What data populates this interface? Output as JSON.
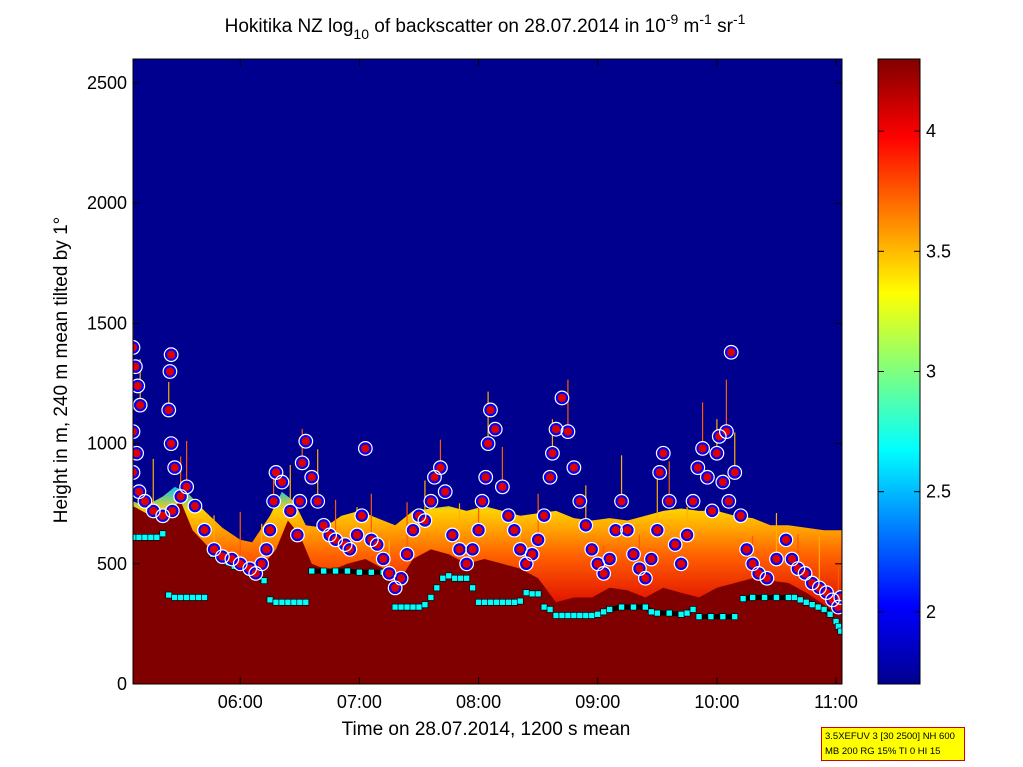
{
  "chart_data": {
    "type": "heatmap",
    "title": {
      "prefix": "Hokitika NZ log",
      "log_base": "10",
      "middle": " of backscatter on 28.07.2014 in 10",
      "exp1": "-9",
      "unit1": " m",
      "exp2": "-1",
      "unit2": " sr",
      "exp3": "-1"
    },
    "xlabel": "Time on 28.07.2014, 1200 s mean",
    "ylabel": "Height in m, 240 m mean tilted by 1°",
    "x_range_hours": [
      5.1,
      11.05
    ],
    "x_ticks": [
      {
        "value": 6,
        "label": "06:00"
      },
      {
        "value": 7,
        "label": "07:00"
      },
      {
        "value": 8,
        "label": "08:00"
      },
      {
        "value": 9,
        "label": "09:00"
      },
      {
        "value": 10,
        "label": "10:00"
      },
      {
        "value": 11,
        "label": "11:00"
      }
    ],
    "y_range_m": [
      0,
      2600
    ],
    "y_ticks": [
      {
        "value": 0,
        "label": "0"
      },
      {
        "value": 500,
        "label": "500"
      },
      {
        "value": 1000,
        "label": "1000"
      },
      {
        "value": 1500,
        "label": "1500"
      },
      {
        "value": 2000,
        "label": "2000"
      },
      {
        "value": 2500,
        "label": "2500"
      }
    ],
    "colorbar": {
      "range": [
        1.7,
        4.3
      ],
      "ticks": [
        {
          "value": 2,
          "label": "2"
        },
        {
          "value": 2.5,
          "label": "2.5"
        },
        {
          "value": 3,
          "label": "3"
        },
        {
          "value": 3.5,
          "label": "3.5"
        },
        {
          "value": 4,
          "label": "4"
        }
      ]
    },
    "backscatter_layer_top_m": [
      [
        5.1,
        760
      ],
      [
        5.2,
        740
      ],
      [
        5.35,
        780
      ],
      [
        5.45,
        820
      ],
      [
        5.55,
        800
      ],
      [
        5.7,
        720
      ],
      [
        5.85,
        650
      ],
      [
        6.0,
        600
      ],
      [
        6.1,
        590
      ],
      [
        6.25,
        700
      ],
      [
        6.35,
        800
      ],
      [
        6.45,
        760
      ],
      [
        6.55,
        660
      ],
      [
        6.7,
        650
      ],
      [
        6.85,
        700
      ],
      [
        7.0,
        720
      ],
      [
        7.15,
        690
      ],
      [
        7.3,
        660
      ],
      [
        7.45,
        720
      ],
      [
        7.6,
        730
      ],
      [
        7.75,
        740
      ],
      [
        7.9,
        720
      ],
      [
        8.05,
        740
      ],
      [
        8.2,
        720
      ],
      [
        8.35,
        700
      ],
      [
        8.5,
        710
      ],
      [
        8.65,
        720
      ],
      [
        8.8,
        690
      ],
      [
        8.95,
        680
      ],
      [
        9.1,
        690
      ],
      [
        9.25,
        680
      ],
      [
        9.4,
        700
      ],
      [
        9.55,
        720
      ],
      [
        9.7,
        730
      ],
      [
        9.85,
        720
      ],
      [
        10.0,
        720
      ],
      [
        10.15,
        700
      ],
      [
        10.3,
        690
      ],
      [
        10.45,
        660
      ],
      [
        10.6,
        660
      ],
      [
        10.75,
        650
      ],
      [
        10.9,
        640
      ],
      [
        11.05,
        640
      ]
    ],
    "saturated_layer_top_m": [
      [
        5.1,
        740
      ],
      [
        5.25,
        700
      ],
      [
        5.4,
        720
      ],
      [
        5.5,
        760
      ],
      [
        5.6,
        640
      ],
      [
        5.75,
        560
      ],
      [
        5.9,
        500
      ],
      [
        6.05,
        480
      ],
      [
        6.15,
        470
      ],
      [
        6.3,
        560
      ],
      [
        6.4,
        680
      ],
      [
        6.5,
        620
      ],
      [
        6.6,
        500
      ],
      [
        6.75,
        470
      ],
      [
        6.9,
        500
      ],
      [
        7.05,
        520
      ],
      [
        7.2,
        480
      ],
      [
        7.3,
        400
      ],
      [
        7.45,
        520
      ],
      [
        7.6,
        560
      ],
      [
        7.75,
        540
      ],
      [
        7.9,
        500
      ],
      [
        8.05,
        520
      ],
      [
        8.2,
        500
      ],
      [
        8.35,
        480
      ],
      [
        8.5,
        440
      ],
      [
        8.65,
        340
      ],
      [
        8.8,
        360
      ],
      [
        8.95,
        360
      ],
      [
        9.1,
        400
      ],
      [
        9.25,
        390
      ],
      [
        9.4,
        360
      ],
      [
        9.55,
        400
      ],
      [
        9.7,
        380
      ],
      [
        9.85,
        360
      ],
      [
        10.0,
        400
      ],
      [
        10.15,
        420
      ],
      [
        10.3,
        440
      ],
      [
        10.45,
        430
      ],
      [
        10.6,
        420
      ],
      [
        10.75,
        380
      ],
      [
        10.9,
        330
      ],
      [
        11.0,
        300
      ],
      [
        11.05,
        290
      ]
    ],
    "cloud_base_m": [
      [
        5.1,
        1400
      ],
      [
        5.12,
        1320
      ],
      [
        5.14,
        1240
      ],
      [
        5.16,
        1160
      ],
      [
        5.1,
        1050
      ],
      [
        5.13,
        960
      ],
      [
        5.1,
        880
      ],
      [
        5.15,
        800
      ],
      [
        5.2,
        760
      ],
      [
        5.27,
        720
      ],
      [
        5.35,
        700
      ],
      [
        5.43,
        720
      ],
      [
        5.5,
        780
      ],
      [
        5.45,
        900
      ],
      [
        5.42,
        1000
      ],
      [
        5.4,
        1140
      ],
      [
        5.41,
        1300
      ],
      [
        5.42,
        1370
      ],
      [
        5.55,
        820
      ],
      [
        5.62,
        740
      ],
      [
        5.7,
        640
      ],
      [
        5.78,
        560
      ],
      [
        5.85,
        530
      ],
      [
        5.93,
        520
      ],
      [
        6.0,
        500
      ],
      [
        6.08,
        480
      ],
      [
        6.13,
        460
      ],
      [
        6.18,
        500
      ],
      [
        6.22,
        560
      ],
      [
        6.25,
        640
      ],
      [
        6.28,
        760
      ],
      [
        6.3,
        880
      ],
      [
        6.35,
        840
      ],
      [
        6.42,
        720
      ],
      [
        6.48,
        620
      ],
      [
        6.5,
        760
      ],
      [
        6.52,
        920
      ],
      [
        6.55,
        1010
      ],
      [
        6.6,
        860
      ],
      [
        6.65,
        760
      ],
      [
        6.7,
        660
      ],
      [
        6.75,
        620
      ],
      [
        6.8,
        600
      ],
      [
        6.88,
        580
      ],
      [
        6.92,
        560
      ],
      [
        6.98,
        620
      ],
      [
        7.02,
        700
      ],
      [
        7.05,
        980
      ],
      [
        7.1,
        600
      ],
      [
        7.15,
        580
      ],
      [
        7.2,
        520
      ],
      [
        7.25,
        460
      ],
      [
        7.3,
        400
      ],
      [
        7.35,
        440
      ],
      [
        7.4,
        540
      ],
      [
        7.45,
        640
      ],
      [
        7.5,
        700
      ],
      [
        7.55,
        680
      ],
      [
        7.6,
        760
      ],
      [
        7.63,
        860
      ],
      [
        7.68,
        900
      ],
      [
        7.72,
        800
      ],
      [
        7.78,
        620
      ],
      [
        7.84,
        560
      ],
      [
        7.9,
        500
      ],
      [
        7.95,
        560
      ],
      [
        8.0,
        640
      ],
      [
        8.03,
        760
      ],
      [
        8.06,
        860
      ],
      [
        8.08,
        1000
      ],
      [
        8.1,
        1140
      ],
      [
        8.14,
        1060
      ],
      [
        8.2,
        820
      ],
      [
        8.25,
        700
      ],
      [
        8.3,
        640
      ],
      [
        8.35,
        560
      ],
      [
        8.4,
        500
      ],
      [
        8.45,
        540
      ],
      [
        8.5,
        600
      ],
      [
        8.55,
        700
      ],
      [
        8.6,
        860
      ],
      [
        8.62,
        960
      ],
      [
        8.65,
        1060
      ],
      [
        8.7,
        1190
      ],
      [
        8.75,
        1050
      ],
      [
        8.8,
        900
      ],
      [
        8.85,
        760
      ],
      [
        8.9,
        660
      ],
      [
        8.95,
        560
      ],
      [
        9.0,
        500
      ],
      [
        9.05,
        460
      ],
      [
        9.1,
        520
      ],
      [
        9.15,
        640
      ],
      [
        9.2,
        760
      ],
      [
        9.25,
        640
      ],
      [
        9.3,
        540
      ],
      [
        9.35,
        480
      ],
      [
        9.4,
        440
      ],
      [
        9.45,
        520
      ],
      [
        9.5,
        640
      ],
      [
        9.52,
        880
      ],
      [
        9.55,
        960
      ],
      [
        9.6,
        760
      ],
      [
        9.65,
        580
      ],
      [
        9.7,
        500
      ],
      [
        9.75,
        620
      ],
      [
        9.8,
        760
      ],
      [
        9.84,
        900
      ],
      [
        9.88,
        980
      ],
      [
        9.92,
        860
      ],
      [
        9.96,
        720
      ],
      [
        10.0,
        960
      ],
      [
        10.02,
        1030
      ],
      [
        10.05,
        840
      ],
      [
        10.08,
        1050
      ],
      [
        10.1,
        760
      ],
      [
        10.12,
        1380
      ],
      [
        10.15,
        880
      ],
      [
        10.2,
        700
      ],
      [
        10.25,
        560
      ],
      [
        10.3,
        500
      ],
      [
        10.35,
        460
      ],
      [
        10.42,
        440
      ],
      [
        10.5,
        520
      ],
      [
        10.58,
        600
      ],
      [
        10.63,
        520
      ],
      [
        10.68,
        480
      ],
      [
        10.74,
        460
      ],
      [
        10.8,
        420
      ],
      [
        10.86,
        400
      ],
      [
        10.92,
        380
      ],
      [
        10.97,
        350
      ],
      [
        11.02,
        320
      ],
      [
        11.04,
        360
      ]
    ],
    "boundary_layer_m": [
      [
        5.1,
        610
      ],
      [
        5.15,
        610
      ],
      [
        5.2,
        610
      ],
      [
        5.25,
        610
      ],
      [
        5.3,
        610
      ],
      [
        5.35,
        625
      ],
      [
        5.4,
        370
      ],
      [
        5.45,
        360
      ],
      [
        5.5,
        360
      ],
      [
        5.55,
        360
      ],
      [
        5.6,
        360
      ],
      [
        5.65,
        360
      ],
      [
        5.7,
        360
      ],
      [
        5.77,
        540
      ],
      [
        5.85,
        520
      ],
      [
        5.9,
        505
      ],
      [
        5.95,
        490
      ],
      [
        6.0,
        485
      ],
      [
        6.05,
        480
      ],
      [
        6.1,
        460
      ],
      [
        6.15,
        445
      ],
      [
        6.2,
        430
      ],
      [
        6.25,
        350
      ],
      [
        6.3,
        340
      ],
      [
        6.35,
        340
      ],
      [
        6.4,
        340
      ],
      [
        6.45,
        340
      ],
      [
        6.5,
        340
      ],
      [
        6.55,
        340
      ],
      [
        6.6,
        470
      ],
      [
        6.7,
        470
      ],
      [
        6.8,
        470
      ],
      [
        6.9,
        470
      ],
      [
        7.0,
        465
      ],
      [
        7.1,
        465
      ],
      [
        7.2,
        465
      ],
      [
        7.3,
        320
      ],
      [
        7.35,
        320
      ],
      [
        7.4,
        320
      ],
      [
        7.45,
        320
      ],
      [
        7.5,
        320
      ],
      [
        7.55,
        330
      ],
      [
        7.6,
        360
      ],
      [
        7.65,
        400
      ],
      [
        7.7,
        440
      ],
      [
        7.75,
        450
      ],
      [
        7.8,
        440
      ],
      [
        7.85,
        440
      ],
      [
        7.9,
        440
      ],
      [
        7.95,
        400
      ],
      [
        8.0,
        340
      ],
      [
        8.05,
        340
      ],
      [
        8.1,
        340
      ],
      [
        8.15,
        340
      ],
      [
        8.2,
        340
      ],
      [
        8.25,
        340
      ],
      [
        8.3,
        340
      ],
      [
        8.35,
        345
      ],
      [
        8.4,
        380
      ],
      [
        8.45,
        375
      ],
      [
        8.5,
        375
      ],
      [
        8.55,
        320
      ],
      [
        8.6,
        310
      ],
      [
        8.65,
        285
      ],
      [
        8.7,
        285
      ],
      [
        8.75,
        285
      ],
      [
        8.8,
        285
      ],
      [
        8.85,
        285
      ],
      [
        8.9,
        285
      ],
      [
        8.95,
        285
      ],
      [
        9.0,
        290
      ],
      [
        9.05,
        300
      ],
      [
        9.1,
        310
      ],
      [
        9.2,
        320
      ],
      [
        9.3,
        320
      ],
      [
        9.4,
        320
      ],
      [
        9.45,
        300
      ],
      [
        9.5,
        295
      ],
      [
        9.6,
        295
      ],
      [
        9.7,
        290
      ],
      [
        9.75,
        295
      ],
      [
        9.8,
        310
      ],
      [
        9.85,
        280
      ],
      [
        9.95,
        280
      ],
      [
        10.05,
        280
      ],
      [
        10.15,
        280
      ],
      [
        10.22,
        355
      ],
      [
        10.3,
        360
      ],
      [
        10.4,
        360
      ],
      [
        10.5,
        360
      ],
      [
        10.6,
        360
      ],
      [
        10.65,
        360
      ],
      [
        10.7,
        350
      ],
      [
        10.75,
        340
      ],
      [
        10.8,
        330
      ],
      [
        10.85,
        320
      ],
      [
        10.9,
        310
      ],
      [
        10.95,
        290
      ],
      [
        11.0,
        260
      ],
      [
        11.02,
        240
      ],
      [
        11.04,
        220
      ]
    ]
  },
  "info_box": {
    "line1": "3.5XEFUV 3 [30 2500] NH 600",
    "line2": "MB 200 RG 15% TI 0 HI 15"
  },
  "colors": {
    "background": "#00008f",
    "saturated": "#800000",
    "cloud_marker_fill": "#dd0000",
    "cloud_marker_ring": "#0000ff",
    "boundary_line": "#000000",
    "boundary_marker": "#00ffff"
  }
}
